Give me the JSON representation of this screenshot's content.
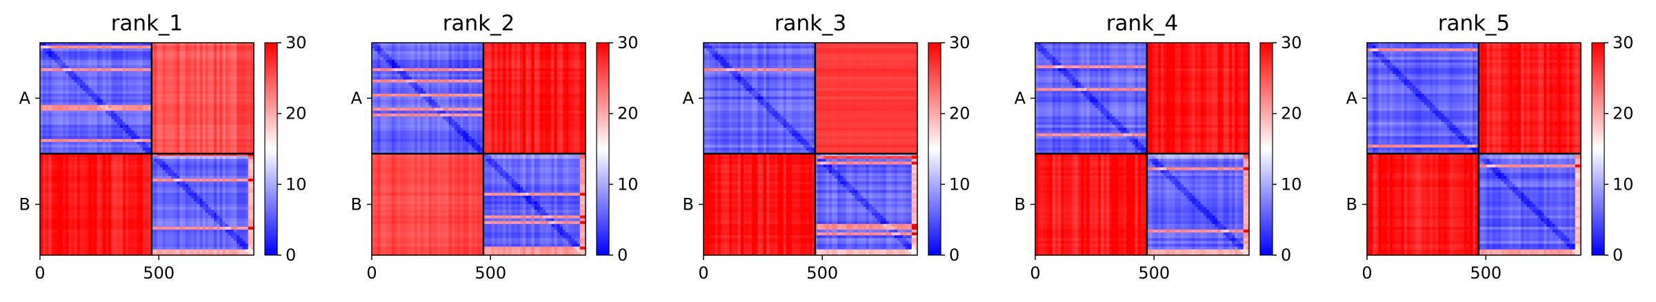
{
  "chart_data": {
    "type": "heatmap",
    "colormap": [
      "#0000ff",
      "#ffffff",
      "#ff0000"
    ],
    "panels": [
      {
        "title": "rank_1",
        "variant": 1
      },
      {
        "title": "rank_2",
        "variant": 2
      },
      {
        "title": "rank_3",
        "variant": 3
      },
      {
        "title": "rank_4",
        "variant": 4
      },
      {
        "title": "rank_5",
        "variant": 5
      }
    ],
    "n_residues": 900,
    "chain_boundary": 470,
    "chains": [
      {
        "label": "A",
        "start": 0,
        "end": 470
      },
      {
        "label": "B",
        "start": 470,
        "end": 900
      }
    ],
    "x_ticks": [
      0,
      500
    ],
    "x_tick_labels": [
      "0",
      "500"
    ],
    "y_tick_labels": [
      "A",
      "B"
    ],
    "colorbar": {
      "range": [
        0,
        30
      ],
      "ticks": [
        0,
        10,
        20,
        30
      ],
      "tick_labels": [
        "0",
        "10",
        "20",
        "30"
      ]
    },
    "description_values": {
      "intra_chain_level": 3,
      "inter_chain_level": 29
    }
  }
}
